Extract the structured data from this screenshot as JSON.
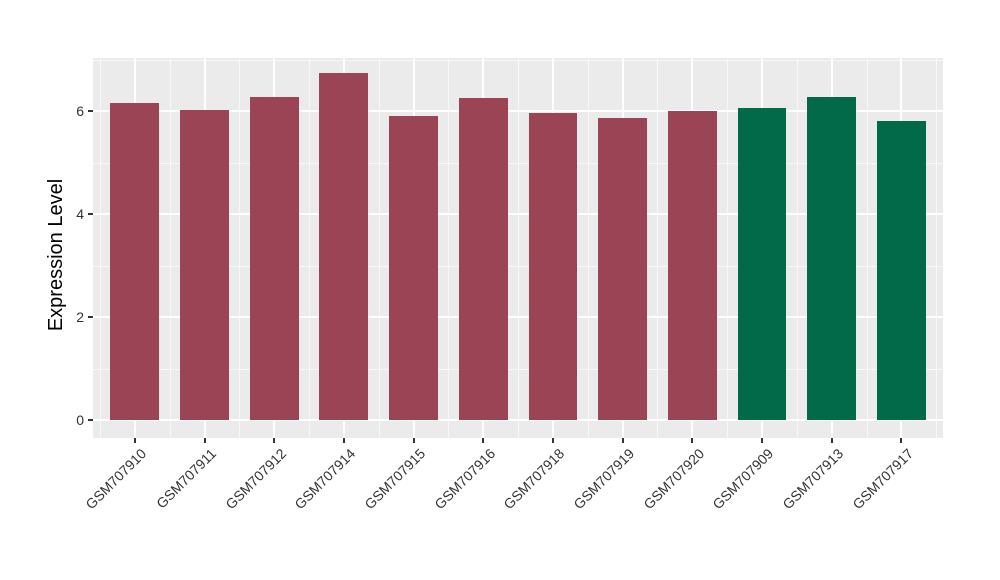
{
  "chart_data": {
    "type": "bar",
    "title": "",
    "xlabel": "",
    "ylabel": "Expression Level",
    "categories": [
      "GSM707910",
      "GSM707911",
      "GSM707912",
      "GSM707914",
      "GSM707915",
      "GSM707916",
      "GSM707918",
      "GSM707919",
      "GSM707920",
      "GSM707909",
      "GSM707913",
      "GSM707917"
    ],
    "values": [
      6.16,
      6.02,
      6.28,
      6.74,
      5.92,
      6.26,
      5.97,
      5.87,
      6.01,
      6.06,
      6.28,
      5.82
    ],
    "bar_colors": [
      "#9A4455",
      "#9A4455",
      "#9A4455",
      "#9A4455",
      "#9A4455",
      "#9A4455",
      "#9A4455",
      "#9A4455",
      "#9A4455",
      "#026A48",
      "#026A48",
      "#026A48"
    ],
    "group_colors": {
      "maroon": "#9A4455",
      "green": "#026A48"
    },
    "yticks": [
      "0",
      "2",
      "4",
      "6"
    ],
    "ytick_values": [
      0,
      2,
      4,
      6
    ],
    "ylim": [
      -0.35,
      7.05
    ],
    "grid": true,
    "legend": false,
    "panel_bg": "#EBEBEB",
    "grid_color": "#FFFFFF",
    "tick_color": "#333333"
  }
}
